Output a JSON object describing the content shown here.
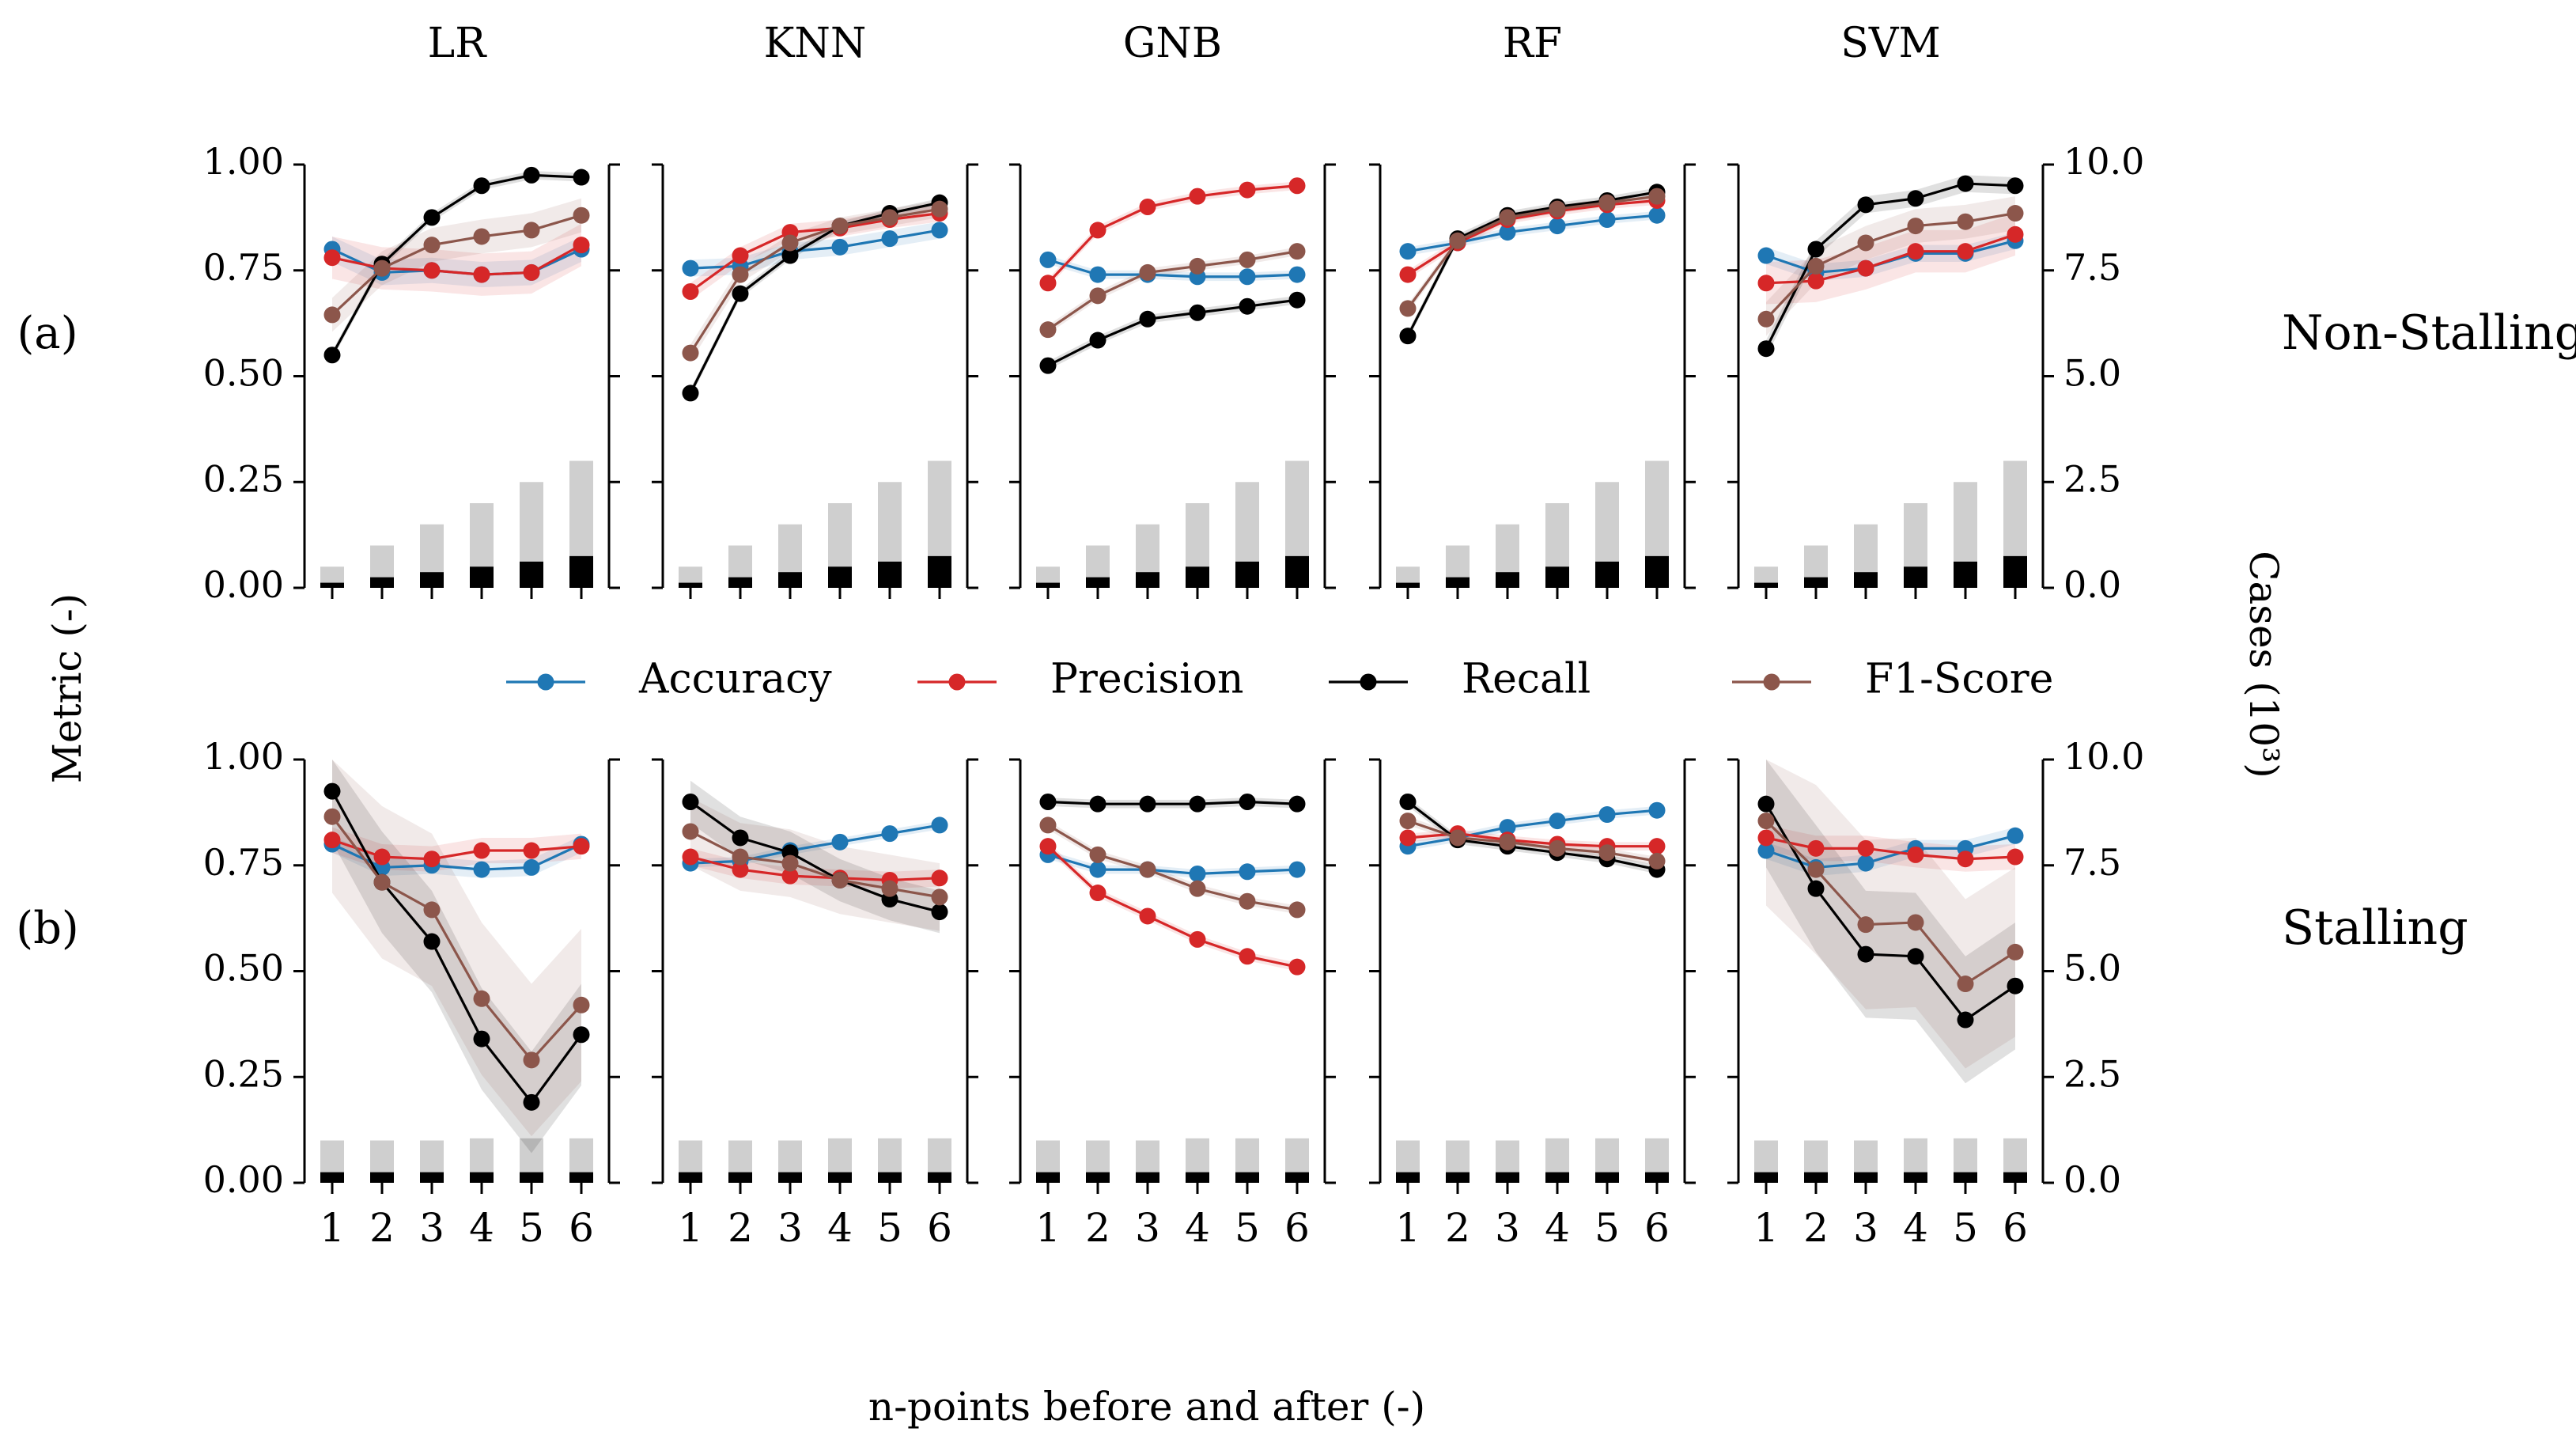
{
  "chart_data": {
    "type": "line",
    "title": "",
    "xlabel": "n-points before and after (-)",
    "ylabel": "Metric (-)",
    "y2label": "Cases (10³)",
    "x": [
      1,
      2,
      3,
      4,
      5,
      6
    ],
    "x_ticks": [
      "1",
      "2",
      "3",
      "4",
      "5",
      "6"
    ],
    "ylim": [
      0,
      1
    ],
    "y_ticks": [
      "0.00",
      "0.25",
      "0.50",
      "0.75",
      "1.00"
    ],
    "y2lim": [
      0,
      10
    ],
    "y2_ticks": [
      "0.0",
      "2.5",
      "5.0",
      "7.5",
      "10.0"
    ],
    "models": [
      "LR",
      "KNN",
      "GNB",
      "RF",
      "SVM"
    ],
    "legend": [
      {
        "name": "Accuracy",
        "color": "#1f77b4"
      },
      {
        "name": "Precision",
        "color": "#d62728"
      },
      {
        "name": "Recall",
        "color": "#000000"
      },
      {
        "name": "F1-Score",
        "color": "#8c564b"
      }
    ],
    "legend_position": "between rows, centered",
    "rows": [
      {
        "label": "(a)",
        "side_label": "Non-Stalling",
        "cases_total": [
          0.5,
          1.0,
          1.5,
          2.0,
          2.5,
          3.0
        ],
        "cases_class": [
          0.12,
          0.25,
          0.37,
          0.5,
          0.62,
          0.75
        ],
        "panels": [
          {
            "model": "LR",
            "series": [
              {
                "name": "Accuracy",
                "values": [
                  0.8,
                  0.745,
                  0.75,
                  0.74,
                  0.745,
                  0.8
                ],
                "band": 0.03
              },
              {
                "name": "Precision",
                "values": [
                  0.78,
                  0.755,
                  0.75,
                  0.74,
                  0.745,
                  0.81
                ],
                "band": 0.05
              },
              {
                "name": "Recall",
                "values": [
                  0.55,
                  0.765,
                  0.875,
                  0.95,
                  0.975,
                  0.97
                ],
                "band": 0.01
              },
              {
                "name": "F1-Score",
                "values": [
                  0.645,
                  0.755,
                  0.81,
                  0.83,
                  0.845,
                  0.88
                ],
                "band": 0.04
              }
            ]
          },
          {
            "model": "KNN",
            "series": [
              {
                "name": "Accuracy",
                "values": [
                  0.755,
                  0.76,
                  0.795,
                  0.805,
                  0.825,
                  0.845
                ],
                "band": 0.02
              },
              {
                "name": "Precision",
                "values": [
                  0.7,
                  0.785,
                  0.84,
                  0.85,
                  0.87,
                  0.885
                ],
                "band": 0.02
              },
              {
                "name": "Recall",
                "values": [
                  0.46,
                  0.695,
                  0.785,
                  0.855,
                  0.885,
                  0.91
                ],
                "band": 0.01
              },
              {
                "name": "F1-Score",
                "values": [
                  0.555,
                  0.74,
                  0.815,
                  0.855,
                  0.875,
                  0.895
                ],
                "band": 0.02
              }
            ]
          },
          {
            "model": "GNB",
            "series": [
              {
                "name": "Accuracy",
                "values": [
                  0.775,
                  0.74,
                  0.74,
                  0.735,
                  0.735,
                  0.74
                ],
                "band": 0.01
              },
              {
                "name": "Precision",
                "values": [
                  0.72,
                  0.845,
                  0.9,
                  0.925,
                  0.94,
                  0.95
                ],
                "band": 0.01
              },
              {
                "name": "Recall",
                "values": [
                  0.525,
                  0.585,
                  0.635,
                  0.65,
                  0.665,
                  0.68
                ],
                "band": 0.01
              },
              {
                "name": "F1-Score",
                "values": [
                  0.61,
                  0.69,
                  0.745,
                  0.76,
                  0.775,
                  0.795
                ],
                "band": 0.01
              }
            ]
          },
          {
            "model": "RF",
            "series": [
              {
                "name": "Accuracy",
                "values": [
                  0.795,
                  0.815,
                  0.84,
                  0.855,
                  0.87,
                  0.88
                ],
                "band": 0.01
              },
              {
                "name": "Precision",
                "values": [
                  0.74,
                  0.815,
                  0.87,
                  0.89,
                  0.905,
                  0.915
                ],
                "band": 0.01
              },
              {
                "name": "Recall",
                "values": [
                  0.595,
                  0.825,
                  0.88,
                  0.9,
                  0.915,
                  0.935
                ],
                "band": 0.01
              },
              {
                "name": "F1-Score",
                "values": [
                  0.66,
                  0.82,
                  0.875,
                  0.895,
                  0.91,
                  0.925
                ],
                "band": 0.01
              }
            ]
          },
          {
            "model": "SVM",
            "series": [
              {
                "name": "Accuracy",
                "values": [
                  0.785,
                  0.745,
                  0.755,
                  0.79,
                  0.79,
                  0.82
                ],
                "band": 0.02
              },
              {
                "name": "Precision",
                "values": [
                  0.72,
                  0.725,
                  0.755,
                  0.795,
                  0.795,
                  0.835
                ],
                "band": 0.05
              },
              {
                "name": "Recall",
                "values": [
                  0.565,
                  0.8,
                  0.905,
                  0.92,
                  0.955,
                  0.95
                ],
                "band": 0.02
              },
              {
                "name": "F1-Score",
                "values": [
                  0.635,
                  0.76,
                  0.815,
                  0.855,
                  0.865,
                  0.885
                ],
                "band": 0.04
              }
            ]
          }
        ]
      },
      {
        "label": "(b)",
        "side_label": "Stalling",
        "cases_total": [
          1.0,
          1.0,
          1.0,
          1.05,
          1.05,
          1.05
        ],
        "cases_class": [
          0.25,
          0.25,
          0.25,
          0.25,
          0.25,
          0.25
        ],
        "panels": [
          {
            "model": "LR",
            "series": [
              {
                "name": "Accuracy",
                "values": [
                  0.8,
                  0.745,
                  0.75,
                  0.74,
                  0.745,
                  0.8
                ],
                "band": 0.02
              },
              {
                "name": "Precision",
                "values": [
                  0.81,
                  0.77,
                  0.765,
                  0.785,
                  0.785,
                  0.795
                ],
                "band": 0.03
              },
              {
                "name": "Recall",
                "values": [
                  0.925,
                  0.71,
                  0.57,
                  0.34,
                  0.19,
                  0.35
                ],
                "band": 0.12
              },
              {
                "name": "F1-Score",
                "values": [
                  0.865,
                  0.71,
                  0.645,
                  0.435,
                  0.29,
                  0.42
                ],
                "band": 0.18
              }
            ]
          },
          {
            "model": "KNN",
            "series": [
              {
                "name": "Accuracy",
                "values": [
                  0.755,
                  0.76,
                  0.785,
                  0.805,
                  0.825,
                  0.845
                ],
                "band": 0.01
              },
              {
                "name": "Precision",
                "values": [
                  0.77,
                  0.74,
                  0.725,
                  0.72,
                  0.715,
                  0.72
                ],
                "band": 0.02
              },
              {
                "name": "Recall",
                "values": [
                  0.9,
                  0.815,
                  0.78,
                  0.715,
                  0.67,
                  0.64
                ],
                "band": 0.05
              },
              {
                "name": "F1-Score",
                "values": [
                  0.83,
                  0.77,
                  0.755,
                  0.715,
                  0.695,
                  0.675
                ],
                "band": 0.08
              }
            ]
          },
          {
            "model": "GNB",
            "series": [
              {
                "name": "Accuracy",
                "values": [
                  0.775,
                  0.74,
                  0.74,
                  0.73,
                  0.735,
                  0.74
                ],
                "band": 0.01
              },
              {
                "name": "Precision",
                "values": [
                  0.795,
                  0.685,
                  0.63,
                  0.575,
                  0.535,
                  0.51
                ],
                "band": 0.01
              },
              {
                "name": "Recall",
                "values": [
                  0.9,
                  0.895,
                  0.895,
                  0.895,
                  0.9,
                  0.895
                ],
                "band": 0.01
              },
              {
                "name": "F1-Score",
                "values": [
                  0.845,
                  0.775,
                  0.74,
                  0.695,
                  0.665,
                  0.645
                ],
                "band": 0.01
              }
            ]
          },
          {
            "model": "RF",
            "series": [
              {
                "name": "Accuracy",
                "values": [
                  0.795,
                  0.815,
                  0.84,
                  0.855,
                  0.87,
                  0.88
                ],
                "band": 0.01
              },
              {
                "name": "Precision",
                "values": [
                  0.815,
                  0.825,
                  0.81,
                  0.8,
                  0.795,
                  0.795
                ],
                "band": 0.01
              },
              {
                "name": "Recall",
                "values": [
                  0.9,
                  0.81,
                  0.795,
                  0.78,
                  0.765,
                  0.74
                ],
                "band": 0.01
              },
              {
                "name": "F1-Score",
                "values": [
                  0.855,
                  0.815,
                  0.805,
                  0.79,
                  0.78,
                  0.76
                ],
                "band": 0.01
              }
            ]
          },
          {
            "model": "SVM",
            "series": [
              {
                "name": "Accuracy",
                "values": [
                  0.785,
                  0.745,
                  0.755,
                  0.79,
                  0.79,
                  0.82
                ],
                "band": 0.02
              },
              {
                "name": "Precision",
                "values": [
                  0.815,
                  0.79,
                  0.79,
                  0.775,
                  0.765,
                  0.77
                ],
                "band": 0.03
              },
              {
                "name": "Recall",
                "values": [
                  0.895,
                  0.695,
                  0.54,
                  0.535,
                  0.385,
                  0.465
                ],
                "band": 0.15
              },
              {
                "name": "F1-Score",
                "values": [
                  0.855,
                  0.74,
                  0.61,
                  0.615,
                  0.47,
                  0.545
                ],
                "band": 0.2
              }
            ]
          }
        ]
      }
    ]
  }
}
